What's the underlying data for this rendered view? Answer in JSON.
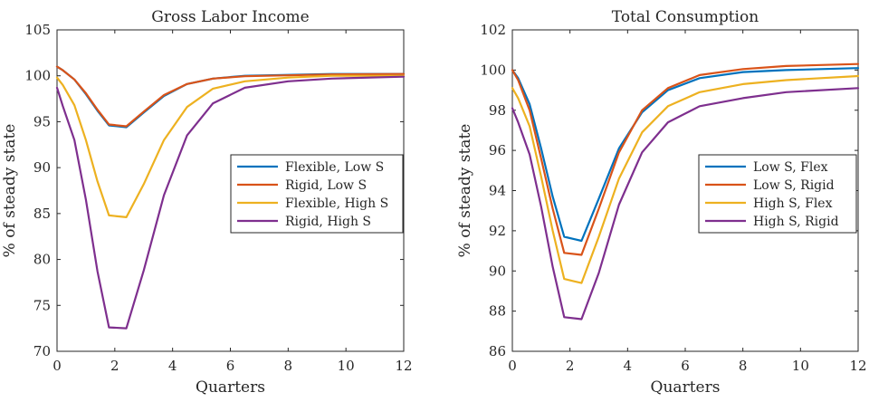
{
  "chart_data": [
    {
      "type": "line",
      "title": "Gross Labor Income",
      "xlabel": "Quarters",
      "ylabel": "% of steady state",
      "xlim": [
        0,
        12
      ],
      "ylim": [
        70,
        105
      ],
      "xticks": [
        0,
        2,
        4,
        6,
        8,
        10,
        12
      ],
      "yticks": [
        70,
        75,
        80,
        85,
        90,
        95,
        100,
        105
      ],
      "legend_position": "middle-right",
      "grid": false,
      "series": [
        {
          "name": "Flexible, Low S",
          "color": "#0072BD",
          "x": [
            0,
            0.2,
            0.6,
            1.0,
            1.4,
            1.8,
            2.4,
            3.0,
            3.7,
            4.5,
            5.4,
            6.5,
            8,
            9.5,
            12
          ],
          "y": [
            101.0,
            100.6,
            99.6,
            98.0,
            96.2,
            94.6,
            94.4,
            96.0,
            97.8,
            99.1,
            99.7,
            100.0,
            100.1,
            100.2,
            100.2
          ]
        },
        {
          "name": "Rigid, Low S",
          "color": "#D95319",
          "x": [
            0,
            0.2,
            0.6,
            1.0,
            1.4,
            1.8,
            2.4,
            3.0,
            3.7,
            4.5,
            5.4,
            6.5,
            8,
            9.5,
            12
          ],
          "y": [
            101.0,
            100.6,
            99.6,
            98.1,
            96.3,
            94.7,
            94.5,
            96.1,
            97.9,
            99.1,
            99.7,
            99.95,
            100.05,
            100.15,
            100.2
          ]
        },
        {
          "name": "Flexible, High S",
          "color": "#EDB120",
          "x": [
            0,
            0.2,
            0.6,
            1.0,
            1.4,
            1.8,
            2.4,
            3.0,
            3.7,
            4.5,
            5.4,
            6.5,
            8,
            9.5,
            12
          ],
          "y": [
            99.8,
            99.0,
            96.8,
            93.0,
            88.5,
            84.8,
            84.6,
            88.2,
            93.0,
            96.6,
            98.6,
            99.4,
            99.8,
            100.0,
            100.0
          ]
        },
        {
          "name": "Rigid, High S",
          "color": "#7E2F8E",
          "x": [
            0,
            0.2,
            0.6,
            1.0,
            1.4,
            1.8,
            2.4,
            3.0,
            3.7,
            4.5,
            5.4,
            6.5,
            8,
            9.5,
            12
          ],
          "y": [
            98.7,
            96.7,
            93.0,
            86.5,
            78.7,
            72.6,
            72.5,
            78.8,
            87.0,
            93.5,
            97.0,
            98.7,
            99.4,
            99.7,
            99.9
          ]
        }
      ]
    },
    {
      "type": "line",
      "title": "Total Consumption",
      "xlabel": "Quarters",
      "ylabel": "% of steady state",
      "xlim": [
        0,
        12
      ],
      "ylim": [
        86,
        102
      ],
      "xticks": [
        0,
        2,
        4,
        6,
        8,
        10,
        12
      ],
      "yticks": [
        86,
        88,
        90,
        92,
        94,
        96,
        98,
        100,
        102
      ],
      "legend_position": "middle-right",
      "grid": false,
      "series": [
        {
          "name": "Low S, Flex",
          "color": "#0072BD",
          "x": [
            0,
            0.2,
            0.6,
            1.0,
            1.4,
            1.8,
            2.4,
            3.0,
            3.7,
            4.5,
            5.4,
            6.5,
            8,
            9.5,
            12
          ],
          "y": [
            100.0,
            99.6,
            98.3,
            96.1,
            93.7,
            91.7,
            91.5,
            93.6,
            96.1,
            97.9,
            99.0,
            99.6,
            99.9,
            100.0,
            100.1
          ]
        },
        {
          "name": "Low S, Rigid",
          "color": "#D95319",
          "x": [
            0,
            0.2,
            0.6,
            1.0,
            1.4,
            1.8,
            2.4,
            3.0,
            3.7,
            4.5,
            5.4,
            6.5,
            8,
            9.5,
            12
          ],
          "y": [
            100.0,
            99.5,
            98.0,
            95.6,
            93.1,
            90.9,
            90.8,
            93.1,
            95.9,
            98.0,
            99.1,
            99.75,
            100.05,
            100.2,
            100.3
          ]
        },
        {
          "name": "High S, Flex",
          "color": "#EDB120",
          "x": [
            0,
            0.2,
            0.6,
            1.0,
            1.4,
            1.8,
            2.4,
            3.0,
            3.7,
            4.5,
            5.4,
            6.5,
            8,
            9.5,
            12
          ],
          "y": [
            99.1,
            98.6,
            97.2,
            94.7,
            92.0,
            89.6,
            89.4,
            91.7,
            94.6,
            96.9,
            98.2,
            98.9,
            99.3,
            99.5,
            99.7
          ]
        },
        {
          "name": "High S, Rigid",
          "color": "#7E2F8E",
          "x": [
            0,
            0.2,
            0.6,
            1.0,
            1.4,
            1.8,
            2.4,
            3.0,
            3.7,
            4.5,
            5.4,
            6.5,
            8,
            9.5,
            12
          ],
          "y": [
            98.1,
            97.4,
            95.8,
            93.2,
            90.2,
            87.7,
            87.6,
            89.9,
            93.3,
            95.9,
            97.4,
            98.2,
            98.6,
            98.9,
            99.1
          ]
        }
      ]
    }
  ]
}
